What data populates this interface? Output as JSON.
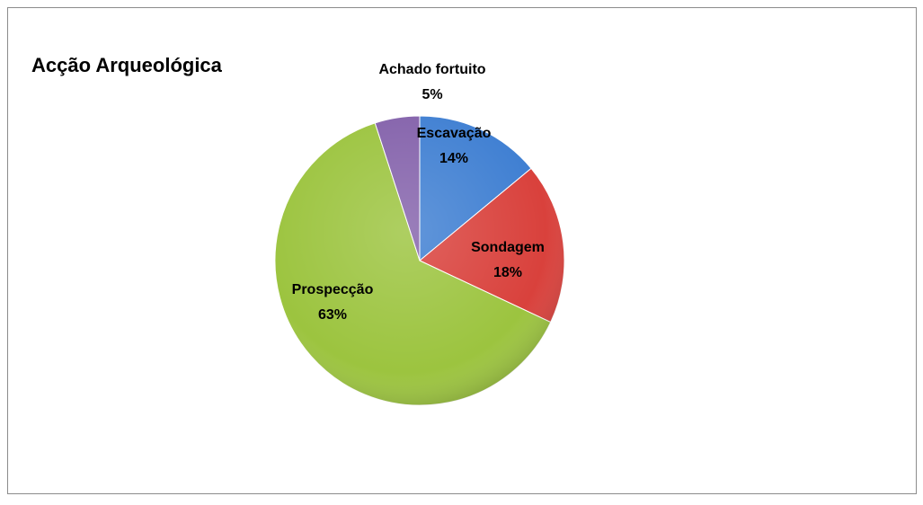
{
  "chart_data": {
    "type": "pie",
    "title": "Acção Arqueológica",
    "categories": [
      "Escavação",
      "Sondagem",
      "Prospecção",
      "Achado fortuito"
    ],
    "values": [
      14,
      18,
      63,
      5
    ],
    "value_labels": [
      "14%",
      "18%",
      "63%",
      "5%"
    ],
    "colors": [
      "#3f7fd2",
      "#d9413c",
      "#9cc43f",
      "#8462ab"
    ]
  }
}
